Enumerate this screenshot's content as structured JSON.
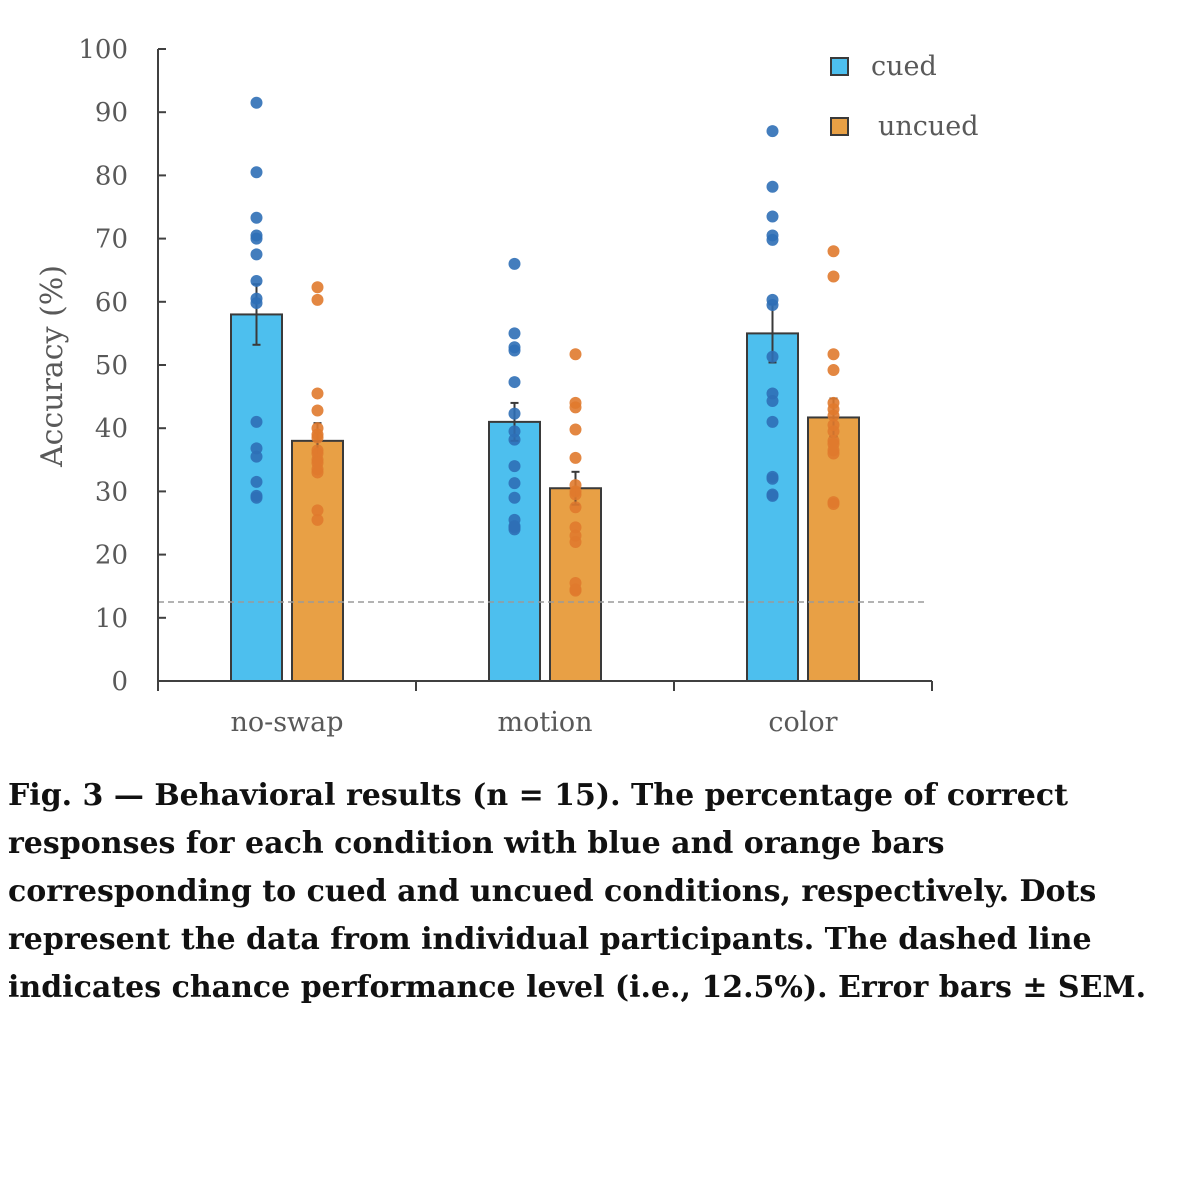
{
  "chart_data": {
    "type": "bar",
    "ylabel": "Accuracy (%)",
    "ylim": [
      0,
      100
    ],
    "yticks": [
      0,
      10,
      20,
      30,
      40,
      50,
      60,
      70,
      80,
      90,
      100
    ],
    "categories": [
      "no-swap",
      "motion",
      "color"
    ],
    "chance_level": 12.5,
    "grid": false,
    "legend_position": "top-right",
    "series": [
      {
        "name": "cued",
        "color": "#4dbfee",
        "values": [
          58,
          41,
          55
        ],
        "sem": [
          4.8,
          3.0,
          4.6
        ],
        "points": [
          [
            91.5,
            80.5,
            73.3,
            70.5,
            70.0,
            67.5,
            63.3,
            60.5,
            59.8,
            41.0,
            36.8,
            35.5,
            31.5,
            29.3,
            29.0
          ],
          [
            66.0,
            55.0,
            52.8,
            52.3,
            47.3,
            42.3,
            39.5,
            38.2,
            34.0,
            31.3,
            29.0,
            25.5,
            24.3,
            24.0,
            24.5
          ],
          [
            87.0,
            78.2,
            73.5,
            70.5,
            69.8,
            60.3,
            59.5,
            51.3,
            45.5,
            44.3,
            41.0,
            32.3,
            32.0,
            29.5,
            29.3
          ]
        ]
      },
      {
        "name": "uncued",
        "color": "#e8a045",
        "values": [
          38,
          30.5,
          41.7
        ],
        "sem": [
          2.8,
          2.6,
          3.0
        ],
        "points": [
          [
            62.3,
            60.3,
            45.5,
            42.8,
            36.0,
            35.0,
            33.0,
            27.0,
            25.5,
            33.5,
            34.5,
            36.5,
            38.5,
            39.0,
            40.0
          ],
          [
            51.7,
            44.0,
            43.3,
            39.8,
            35.3,
            31.0,
            30.0,
            29.5,
            27.5,
            24.3,
            23.0,
            22.0,
            15.5,
            14.3,
            14.5
          ],
          [
            68.0,
            64.0,
            51.7,
            49.2,
            44.0,
            43.0,
            38.0,
            36.5,
            36.0,
            28.3,
            28.0,
            42.0,
            40.5,
            39.5,
            37.5
          ]
        ]
      }
    ]
  },
  "caption": "Fig. 3 — Behavioral results (n = 15). The percentage of correct responses for each condition with blue and orange bars corresponding to cued and uncued conditions, respectively. Dots represent the data from individual participants. The dashed line indicates chance performance level (i.e., 12.5%). Error bars ± SEM."
}
